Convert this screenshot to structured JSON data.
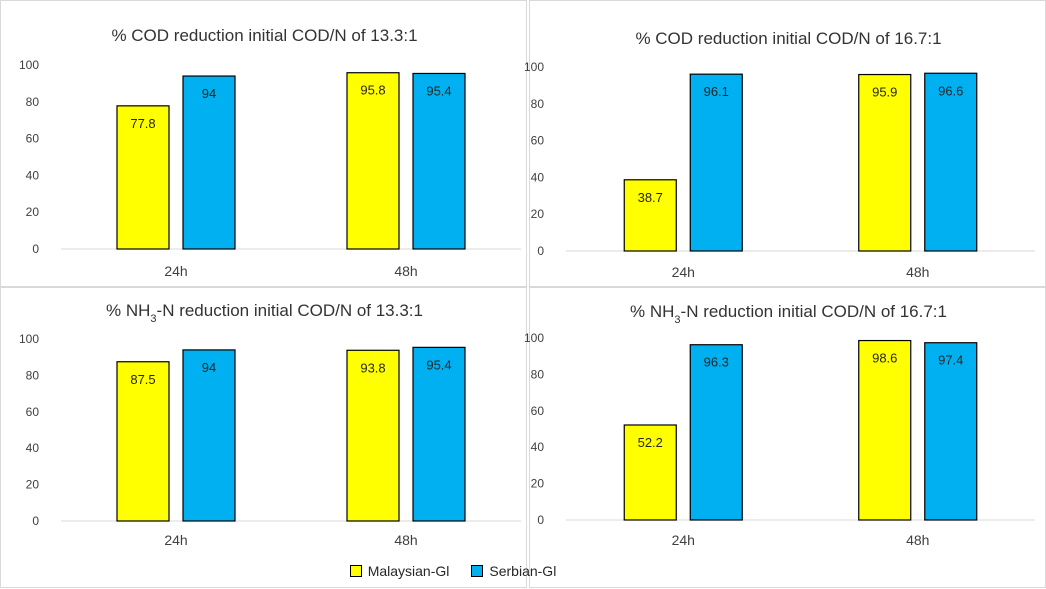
{
  "legend": [
    {
      "label": "Malaysian-Gl",
      "color": "#FFFF00"
    },
    {
      "label": "Serbian-Gl",
      "color": "#00B0F0"
    }
  ],
  "chart_data": [
    {
      "type": "bar",
      "title": "% COD reduction initial COD/N of 13.3:1",
      "categories": [
        "24h",
        "48h"
      ],
      "series": [
        {
          "name": "Malaysian-Gl",
          "values": [
            77.8,
            95.8
          ],
          "color": "#FFFF00"
        },
        {
          "name": "Serbian-Gl",
          "values": [
            94,
            95.4
          ],
          "color": "#00B0F0"
        }
      ],
      "ylim": [
        0,
        100
      ],
      "yticks": [
        0,
        20,
        40,
        60,
        80,
        100
      ],
      "grid": false
    },
    {
      "type": "bar",
      "title": "% COD reduction initial COD/N of 16.7:1",
      "categories": [
        "24h",
        "48h"
      ],
      "series": [
        {
          "name": "Malaysian-Gl",
          "values": [
            38.7,
            95.9
          ],
          "color": "#FFFF00"
        },
        {
          "name": "Serbian-Gl",
          "values": [
            96.1,
            96.6
          ],
          "color": "#00B0F0"
        }
      ],
      "ylim": [
        0,
        100
      ],
      "yticks": [
        0,
        20,
        40,
        60,
        80,
        100
      ],
      "grid": false
    },
    {
      "type": "bar",
      "title": "% NH₃-N reduction initial COD/N of 13.3:1",
      "categories": [
        "24h",
        "48h"
      ],
      "series": [
        {
          "name": "Malaysian-Gl",
          "values": [
            87.5,
            93.8
          ],
          "color": "#FFFF00"
        },
        {
          "name": "Serbian-Gl",
          "values": [
            94,
            95.4
          ],
          "color": "#00B0F0"
        }
      ],
      "ylim": [
        0,
        100
      ],
      "yticks": [
        0,
        20,
        40,
        60,
        80,
        100
      ],
      "grid": false
    },
    {
      "type": "bar",
      "title": "% NH₃-N reduction initial COD/N of 16.7:1",
      "categories": [
        "24h",
        "48h"
      ],
      "series": [
        {
          "name": "Malaysian-Gl",
          "values": [
            52.2,
            98.6
          ],
          "color": "#FFFF00"
        },
        {
          "name": "Serbian-Gl",
          "values": [
            96.3,
            97.4
          ],
          "color": "#00B0F0"
        }
      ],
      "ylim": [
        0,
        100
      ],
      "yticks": [
        0,
        20,
        40,
        60,
        80,
        100
      ],
      "grid": false
    }
  ]
}
